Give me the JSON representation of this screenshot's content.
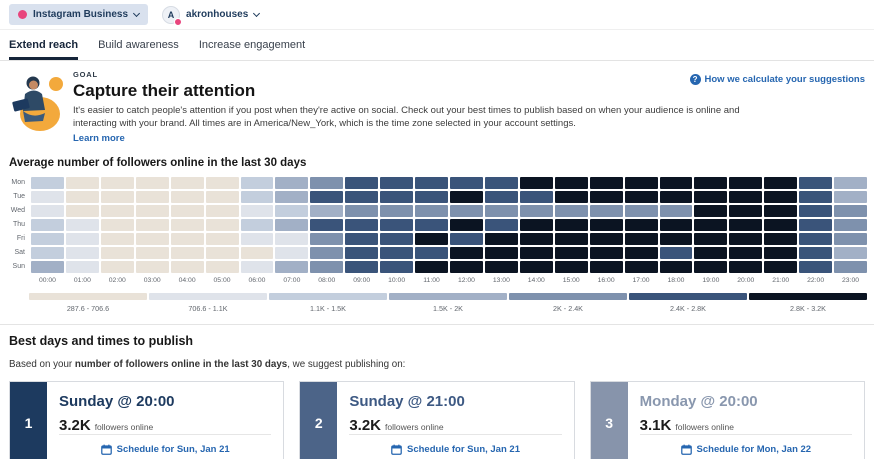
{
  "colors": {
    "navy": "#1f3b5c",
    "pink": "#e8457d",
    "chip-bg": "#d9e1ee",
    "link-blue": "#2666b0"
  },
  "header": {
    "platform_selector": {
      "label": "Instagram Business"
    },
    "account_selector": {
      "label": "akronhouses",
      "avatar_letter": "A"
    }
  },
  "tabs": [
    {
      "label": "Extend reach",
      "active": true
    },
    {
      "label": "Build awareness",
      "active": false
    },
    {
      "label": "Increase engagement",
      "active": false
    }
  ],
  "goal": {
    "eyebrow": "GOAL",
    "title": "Capture their attention",
    "description": "It's easier to catch people's attention if you post when they're active on social. Check out your best times to publish based on when your audience is online and interacting with your brand. All times are in America/New_York, which is the time zone selected in your account settings.",
    "learn_more_label": "Learn more",
    "help_link_label": "How we calculate your suggestions"
  },
  "chart_data": {
    "type": "heatmap",
    "title": "Average number of followers online in the last 30 days",
    "rows": [
      "Mon",
      "Tue",
      "Wed",
      "Thu",
      "Fri",
      "Sat",
      "Sun"
    ],
    "columns": [
      "00:00",
      "01:00",
      "02:00",
      "03:00",
      "04:00",
      "05:00",
      "06:00",
      "07:00",
      "08:00",
      "09:00",
      "10:00",
      "11:00",
      "12:00",
      "13:00",
      "14:00",
      "15:00",
      "16:00",
      "17:00",
      "18:00",
      "19:00",
      "20:00",
      "21:00",
      "22:00",
      "23:00"
    ],
    "legend": [
      {
        "label": "287.6 - 706.6",
        "color": "#e9e2d8"
      },
      {
        "label": "706.6 - 1.1K",
        "color": "#dfe3ea"
      },
      {
        "label": "1.1K - 1.5K",
        "color": "#c3cedd"
      },
      {
        "label": "1.5K - 2K",
        "color": "#a2b0c6"
      },
      {
        "label": "2K - 2.4K",
        "color": "#7e91ad"
      },
      {
        "label": "2.4K - 2.8K",
        "color": "#3a547a"
      },
      {
        "label": "2.8K - 3.2K",
        "color": "#0b1422"
      }
    ],
    "values_note": "levels 1-7 index into legend buckets",
    "values": [
      [
        3,
        1,
        1,
        1,
        1,
        1,
        3,
        4,
        5,
        6,
        6,
        6,
        6,
        6,
        7,
        7,
        7,
        7,
        7,
        7,
        7,
        7,
        6,
        4
      ],
      [
        2,
        1,
        1,
        1,
        1,
        1,
        3,
        4,
        6,
        6,
        6,
        6,
        7,
        6,
        6,
        7,
        7,
        7,
        7,
        7,
        7,
        7,
        6,
        4
      ],
      [
        2,
        1,
        1,
        1,
        1,
        1,
        2,
        3,
        4,
        5,
        5,
        5,
        5,
        5,
        5,
        5,
        5,
        5,
        5,
        7,
        7,
        7,
        6,
        5
      ],
      [
        3,
        2,
        1,
        1,
        1,
        1,
        3,
        4,
        6,
        6,
        6,
        6,
        7,
        6,
        7,
        7,
        7,
        7,
        7,
        7,
        7,
        7,
        6,
        5
      ],
      [
        3,
        2,
        1,
        1,
        1,
        1,
        2,
        2,
        5,
        6,
        6,
        7,
        6,
        7,
        7,
        7,
        7,
        7,
        7,
        7,
        7,
        7,
        6,
        5
      ],
      [
        3,
        2,
        1,
        1,
        1,
        1,
        1,
        2,
        5,
        6,
        6,
        6,
        7,
        7,
        7,
        7,
        7,
        7,
        6,
        7,
        7,
        7,
        6,
        4
      ],
      [
        4,
        2,
        1,
        1,
        1,
        1,
        2,
        4,
        5,
        6,
        6,
        7,
        7,
        7,
        7,
        7,
        7,
        7,
        7,
        7,
        7,
        7,
        6,
        5
      ]
    ]
  },
  "best_times": {
    "title": "Best days and times to publish",
    "intro_prefix": "Based on your ",
    "intro_bold": "number of followers online in the last 30 days",
    "intro_suffix": ", we suggest publishing on:",
    "cards": [
      {
        "rank": "1",
        "title": "Sunday @ 20:00",
        "count": "3.2K",
        "count_suffix": "followers online",
        "schedule_label": "Schedule for Sun, Jan 21",
        "accent": "#1d3a5f",
        "title_color": "#1d3a5f"
      },
      {
        "rank": "2",
        "title": "Sunday @ 21:00",
        "count": "3.2K",
        "count_suffix": "followers online",
        "schedule_label": "Schedule for Sun, Jan 21",
        "accent": "#4c6488",
        "title_color": "#3d5983"
      },
      {
        "rank": "3",
        "title": "Monday @ 20:00",
        "count": "3.1K",
        "count_suffix": "followers online",
        "schedule_label": "Schedule for Mon, Jan 22",
        "accent": "#8794ab",
        "title_color": "#8997ae"
      }
    ]
  }
}
